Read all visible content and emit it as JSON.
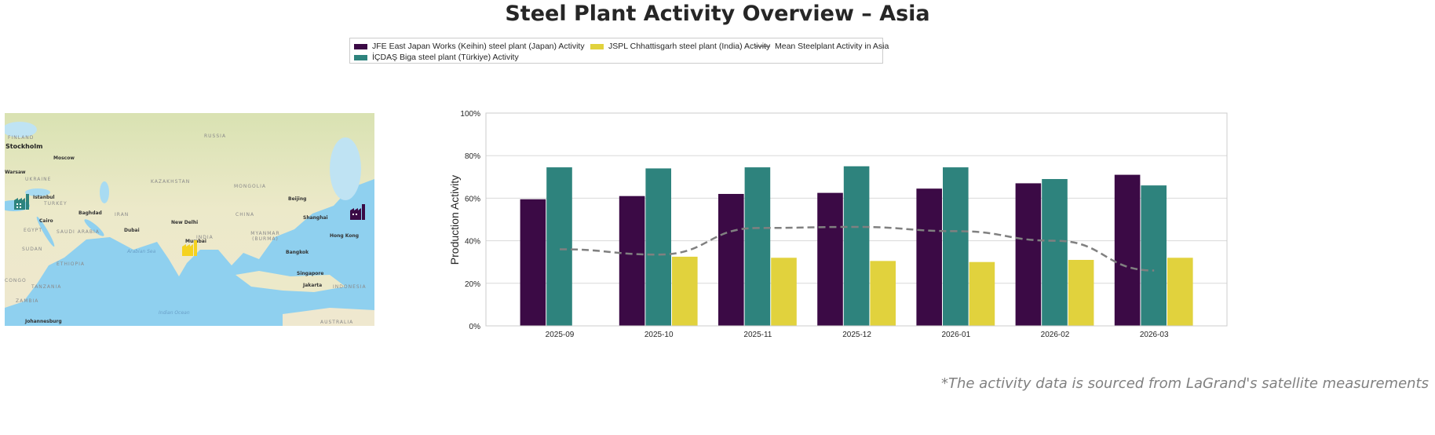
{
  "title": "Steel Plant Activity Overview – Asia",
  "footnote": "*The activity data is sourced from LaGrand's satellite measurements",
  "legend": [
    {
      "label": "JFE East Japan Works (Keihin) steel plant (Japan) Activity",
      "color": "#3b0a45"
    },
    {
      "label": "İÇDAŞ Biga steel plant (Türkiye) Activity",
      "color": "#2e837d"
    },
    {
      "label": "JSPL Chhattisgarh steel plant (India) Activity",
      "color": "#e1d23d"
    },
    {
      "label": "Mean Steelplant Activity in Asia",
      "color": "#808080",
      "style": "dashed"
    }
  ],
  "map": {
    "markers": [
      {
        "plant": "Türkiye",
        "color": "#2e837d",
        "icon": "factory-icon"
      },
      {
        "plant": "India",
        "color": "#f5d21f",
        "icon": "factory-icon"
      },
      {
        "plant": "Japan",
        "color": "#3b0a45",
        "icon": "factory-icon"
      }
    ],
    "labels": [
      "RUSSIA",
      "FINLAND",
      "Stockholm",
      "Moscow",
      "Warsaw",
      "UKRAINE",
      "KAZAKHSTAN",
      "MONGOLIA",
      "Istanbul",
      "TURKEY",
      "Beijing",
      "Baghdad",
      "IRAN",
      "CHINA",
      "Shanghai",
      "Cairo",
      "New Delhi",
      "EGYPT",
      "SAUDI ARABIA",
      "Dubai",
      "INDIA",
      "MYANMAR (BURMA)",
      "Hong Kong",
      "Mumbai",
      "Arabian Sea",
      "SUDAN",
      "Bangkok",
      "ETHIOPIA",
      "Singapore",
      "CONGO",
      "Jakarta",
      "TANZANIA",
      "INDONESIA",
      "ZAMBIA",
      "Indian Ocean",
      "Johannesburg",
      "AUSTRALIA"
    ]
  },
  "chart_data": {
    "type": "bar",
    "ylabel": "Production Activity",
    "xlabel": "",
    "ylim": [
      0,
      100
    ],
    "yticks": [
      "0%",
      "20%",
      "40%",
      "60%",
      "80%",
      "100%"
    ],
    "grid": true,
    "legend_placement": "top-center",
    "categories": [
      "2025-09",
      "2025-10",
      "2025-11",
      "2025-12",
      "2026-01",
      "2026-02",
      "2026-03"
    ],
    "series": [
      {
        "name": "JFE East Japan Works (Keihin) steel plant (Japan) Activity",
        "type": "bar",
        "color": "#3b0a45",
        "values": [
          59.5,
          61,
          62,
          62.5,
          64.5,
          67,
          71
        ]
      },
      {
        "name": "İÇDAŞ Biga steel plant (Türkiye) Activity",
        "type": "bar",
        "color": "#2e837d",
        "values": [
          74.5,
          74,
          74.5,
          75,
          74.5,
          69,
          66
        ]
      },
      {
        "name": "JSPL Chhattisgarh steel plant (India) Activity",
        "type": "bar",
        "color": "#e1d23d",
        "values": [
          null,
          32.5,
          32,
          30.5,
          30,
          31,
          32
        ]
      },
      {
        "name": "Mean Steelplant Activity in Asia",
        "type": "line",
        "style": "dashed",
        "color": "#808080",
        "values": [
          36,
          33.5,
          46,
          46.5,
          44.5,
          40,
          26
        ]
      }
    ]
  }
}
